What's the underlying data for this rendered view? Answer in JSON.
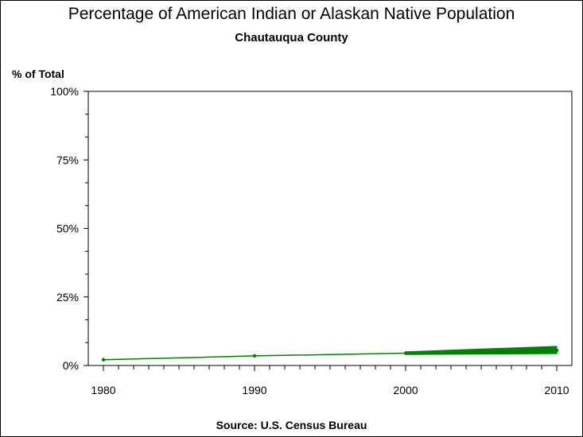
{
  "chart_data": {
    "type": "line",
    "title": "Percentage of American Indian or Alaskan Native Population",
    "subtitle": "Chautauqua County",
    "ylabel": "% of Total",
    "source": "Source: U.S. Census Bureau",
    "x": [
      1980,
      1990,
      2000,
      2010
    ],
    "xlim": [
      1979,
      2011
    ],
    "ylim": [
      0,
      100
    ],
    "xticks": [
      "1980",
      "1990",
      "2000",
      "2010"
    ],
    "yticks": [
      {
        "value": 0,
        "label": "0%"
      },
      {
        "value": 25,
        "label": "25%"
      },
      {
        "value": 50,
        "label": "50%"
      },
      {
        "value": 75,
        "label": "75%"
      },
      {
        "value": 100,
        "label": "100%"
      }
    ],
    "series": [
      {
        "values": [
          2.1,
          3.5,
          4.5,
          5.5
        ],
        "color": "#008000"
      }
    ],
    "band": {
      "x": [
        2000,
        2010
      ],
      "low": [
        4.0,
        4.3
      ],
      "high": [
        5.0,
        7.0
      ],
      "color": "#008000"
    },
    "grid": false,
    "colors": {
      "line": "#008000",
      "axis": "#000000",
      "text": "#000000"
    }
  }
}
